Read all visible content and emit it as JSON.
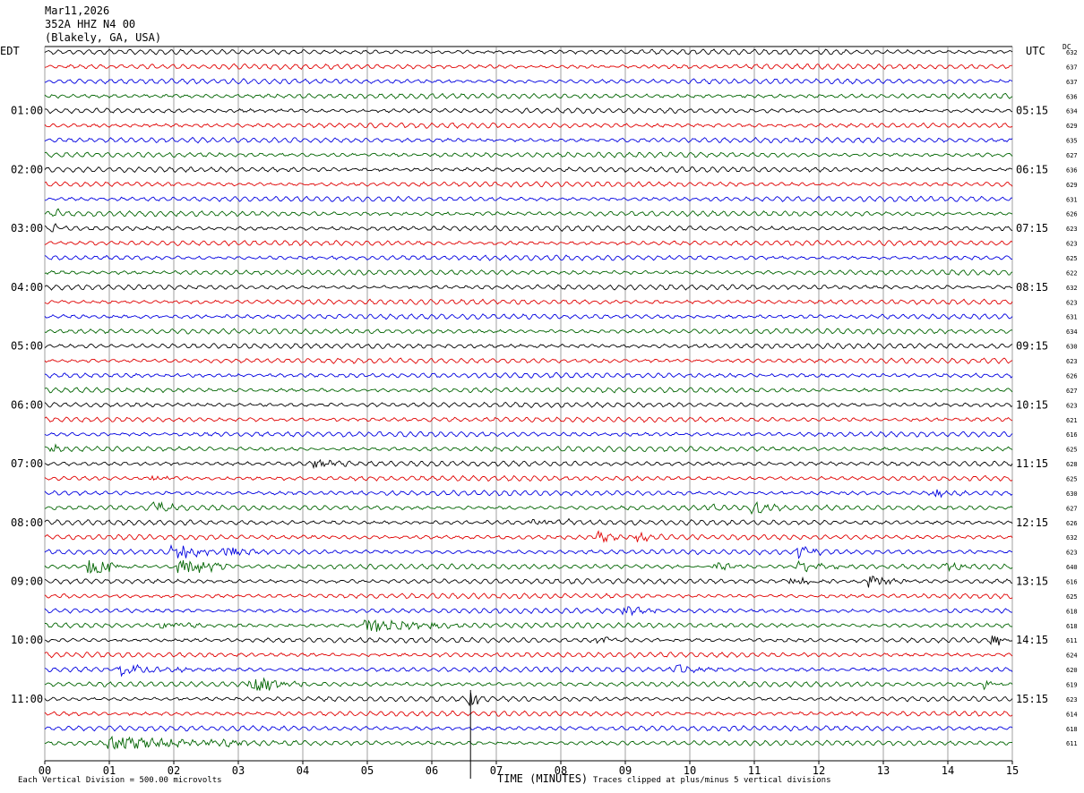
{
  "header": {
    "date": "Mar11,2026",
    "station": "352A HHZ N4 00",
    "location": "(Blakely, GA, USA)"
  },
  "left_tz": "EDT",
  "right_tz": "UTC",
  "dc_label": "DC",
  "footer": {
    "scale_note": "Each Vertical Division =  500.00 microvolts",
    "xlabel": "TIME (MINUTES)",
    "clip_note": "Traces clipped at plus/minus 5 vertical divisions"
  },
  "colors": {
    "trace_cycle": [
      "#000000",
      "#e00000",
      "#0000e0",
      "#006400"
    ],
    "grid": "#606060",
    "marker": "#000000"
  },
  "chart_data": {
    "type": "line",
    "title": "",
    "xlabel": "TIME (MINUTES)",
    "xlim": [
      0,
      15
    ],
    "x_ticks": [
      "00",
      "01",
      "02",
      "03",
      "04",
      "05",
      "06",
      "07",
      "08",
      "09",
      "10",
      "11",
      "12",
      "13",
      "14",
      "15"
    ],
    "left_hour_labels": [
      "01:00",
      "02:00",
      "03:00",
      "04:00",
      "05:00",
      "06:00",
      "07:00",
      "08:00",
      "09:00",
      "10:00",
      "11:00"
    ],
    "right_hour_labels": [
      "05:15",
      "06:15",
      "07:15",
      "08:15",
      "09:15",
      "10:15",
      "11:15",
      "12:15",
      "13:15",
      "14:15",
      "15:15"
    ],
    "hour_label_first_trace": 4,
    "traces_per_hour": 4,
    "trace_count": 48,
    "dc_offsets": [
      632,
      637,
      637,
      636,
      634,
      629,
      635,
      627,
      636,
      629,
      631,
      626,
      623,
      623,
      625,
      622,
      632,
      623,
      631,
      634,
      630,
      623,
      626,
      627,
      623,
      621,
      616,
      625,
      628,
      625,
      630,
      627,
      626,
      632,
      623,
      640,
      616,
      625,
      618,
      618,
      611,
      624,
      620,
      619,
      623,
      614,
      618,
      611
    ],
    "marker_minute": 6.6,
    "events": [
      {
        "trace": 11,
        "minute": 0.2,
        "amp": 0.6,
        "dur": 0.3
      },
      {
        "trace": 12,
        "minute": 0.15,
        "amp": 0.9,
        "dur": 0.2
      },
      {
        "trace": 27,
        "minute": 0.15,
        "amp": 0.8,
        "dur": 0.2
      },
      {
        "trace": 28,
        "minute": 4.2,
        "amp": 1.0,
        "dur": 0.8
      },
      {
        "trace": 29,
        "minute": 1.7,
        "amp": 0.6,
        "dur": 0.5
      },
      {
        "trace": 30,
        "minute": 13.8,
        "amp": 1.2,
        "dur": 0.5
      },
      {
        "trace": 31,
        "minute": 1.7,
        "amp": 1.4,
        "dur": 0.4
      },
      {
        "trace": 31,
        "minute": 10.3,
        "amp": 0.8,
        "dur": 0.3
      },
      {
        "trace": 31,
        "minute": 11.0,
        "amp": 1.4,
        "dur": 0.4
      },
      {
        "trace": 32,
        "minute": 7.6,
        "amp": 1.1,
        "dur": 0.8
      },
      {
        "trace": 33,
        "minute": 8.6,
        "amp": 1.2,
        "dur": 0.4
      },
      {
        "trace": 33,
        "minute": 9.2,
        "amp": 1.0,
        "dur": 0.4
      },
      {
        "trace": 34,
        "minute": 2.0,
        "amp": 2.2,
        "dur": 0.6
      },
      {
        "trace": 34,
        "minute": 2.8,
        "amp": 1.6,
        "dur": 0.5
      },
      {
        "trace": 34,
        "minute": 11.7,
        "amp": 1.6,
        "dur": 0.4
      },
      {
        "trace": 35,
        "minute": 0.7,
        "amp": 2.6,
        "dur": 0.6
      },
      {
        "trace": 35,
        "minute": 2.1,
        "amp": 3.0,
        "dur": 0.8
      },
      {
        "trace": 35,
        "minute": 10.4,
        "amp": 1.2,
        "dur": 0.5
      },
      {
        "trace": 35,
        "minute": 11.7,
        "amp": 1.4,
        "dur": 0.6
      },
      {
        "trace": 35,
        "minute": 14.0,
        "amp": 1.0,
        "dur": 0.4
      },
      {
        "trace": 36,
        "minute": 11.5,
        "amp": 1.0,
        "dur": 0.8
      },
      {
        "trace": 36,
        "minute": 12.8,
        "amp": 1.4,
        "dur": 0.6
      },
      {
        "trace": 38,
        "minute": 9.0,
        "amp": 1.0,
        "dur": 0.6
      },
      {
        "trace": 39,
        "minute": 1.8,
        "amp": 1.0,
        "dur": 0.8
      },
      {
        "trace": 39,
        "minute": 5.0,
        "amp": 1.6,
        "dur": 1.5
      },
      {
        "trace": 40,
        "minute": 8.6,
        "amp": 1.2,
        "dur": 0.3
      },
      {
        "trace": 40,
        "minute": 14.7,
        "amp": 1.0,
        "dur": 0.4
      },
      {
        "trace": 42,
        "minute": 1.2,
        "amp": 1.2,
        "dur": 1.2
      },
      {
        "trace": 42,
        "minute": 9.8,
        "amp": 1.0,
        "dur": 0.8
      },
      {
        "trace": 43,
        "minute": 3.2,
        "amp": 2.6,
        "dur": 0.8
      },
      {
        "trace": 43,
        "minute": 14.6,
        "amp": 1.0,
        "dur": 0.3
      },
      {
        "trace": 44,
        "minute": 6.6,
        "amp": 3.5,
        "dur": 0.15
      },
      {
        "trace": 47,
        "minute": 1.0,
        "amp": 1.4,
        "dur": 3.0
      }
    ]
  }
}
